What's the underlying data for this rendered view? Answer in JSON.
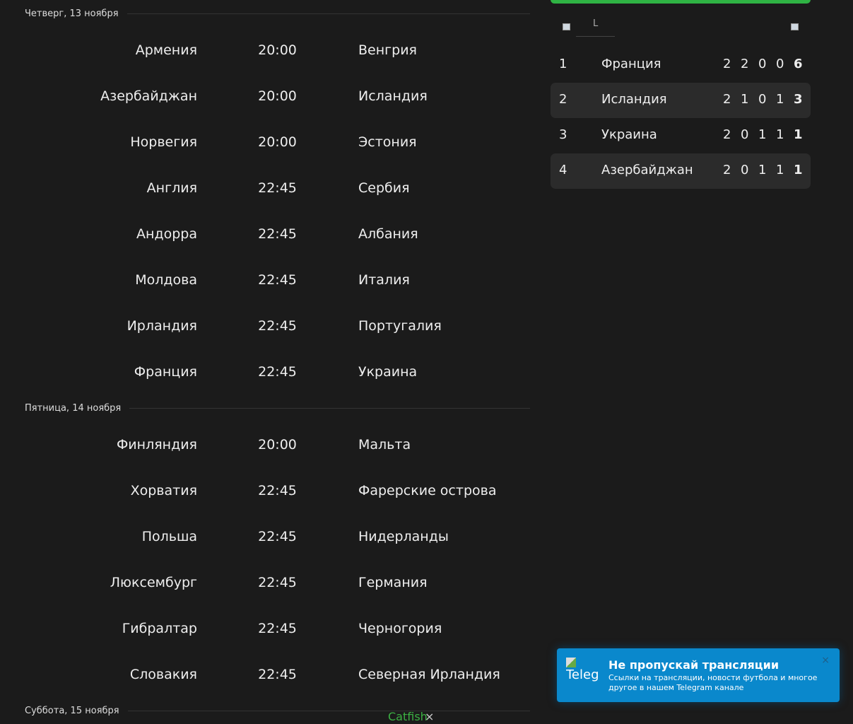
{
  "days": [
    {
      "date": "Четверг, 13 ноября",
      "matches": [
        {
          "home": "Армения",
          "time": "20:00",
          "away": "Венгрия"
        },
        {
          "home": "Азербайджан",
          "time": "20:00",
          "away": "Исландия"
        },
        {
          "home": "Норвегия",
          "time": "20:00",
          "away": "Эстония"
        },
        {
          "home": "Англия",
          "time": "22:45",
          "away": "Сербия"
        },
        {
          "home": "Андорра",
          "time": "22:45",
          "away": "Албания"
        },
        {
          "home": "Молдова",
          "time": "22:45",
          "away": "Италия"
        },
        {
          "home": "Ирландия",
          "time": "22:45",
          "away": "Португалия"
        },
        {
          "home": "Франция",
          "time": "22:45",
          "away": "Украина"
        }
      ]
    },
    {
      "date": "Пятница, 14 ноября",
      "matches": [
        {
          "home": "Финляндия",
          "time": "20:00",
          "away": "Мальта"
        },
        {
          "home": "Хорватия",
          "time": "22:45",
          "away": "Фарерские острова"
        },
        {
          "home": "Польша",
          "time": "22:45",
          "away": "Нидерланды"
        },
        {
          "home": "Люксембург",
          "time": "22:45",
          "away": "Германия"
        },
        {
          "home": "Гибралтар",
          "time": "22:45",
          "away": "Черногория"
        },
        {
          "home": "Словакия",
          "time": "22:45",
          "away": "Северная Ирландия"
        }
      ]
    },
    {
      "date": "Суббота, 15 ноября",
      "matches": []
    }
  ],
  "standings": {
    "tab_label": "L",
    "rows": [
      {
        "pos": "1",
        "team": "Франция",
        "stats": [
          "2",
          "2",
          "0",
          "0"
        ],
        "pts": "6"
      },
      {
        "pos": "2",
        "team": "Исландия",
        "stats": [
          "2",
          "1",
          "0",
          "1"
        ],
        "pts": "3"
      },
      {
        "pos": "3",
        "team": "Украина",
        "stats": [
          "2",
          "0",
          "1",
          "1"
        ],
        "pts": "1"
      },
      {
        "pos": "4",
        "team": "Азербайджан",
        "stats": [
          "2",
          "0",
          "1",
          "1"
        ],
        "pts": "1"
      }
    ]
  },
  "toast": {
    "logo_alt": "Telegram",
    "title": "Не пропускай трансляции",
    "text": "Ссылки на трансляции, новости футбола и многое другое в нашем Telegram канале",
    "close": "×"
  },
  "catfish": {
    "alt": "Catfish",
    "close": "×"
  },
  "colors": {
    "background": "#1b1b1b",
    "accent": "#2fb344",
    "toast": "#0a88cc"
  }
}
